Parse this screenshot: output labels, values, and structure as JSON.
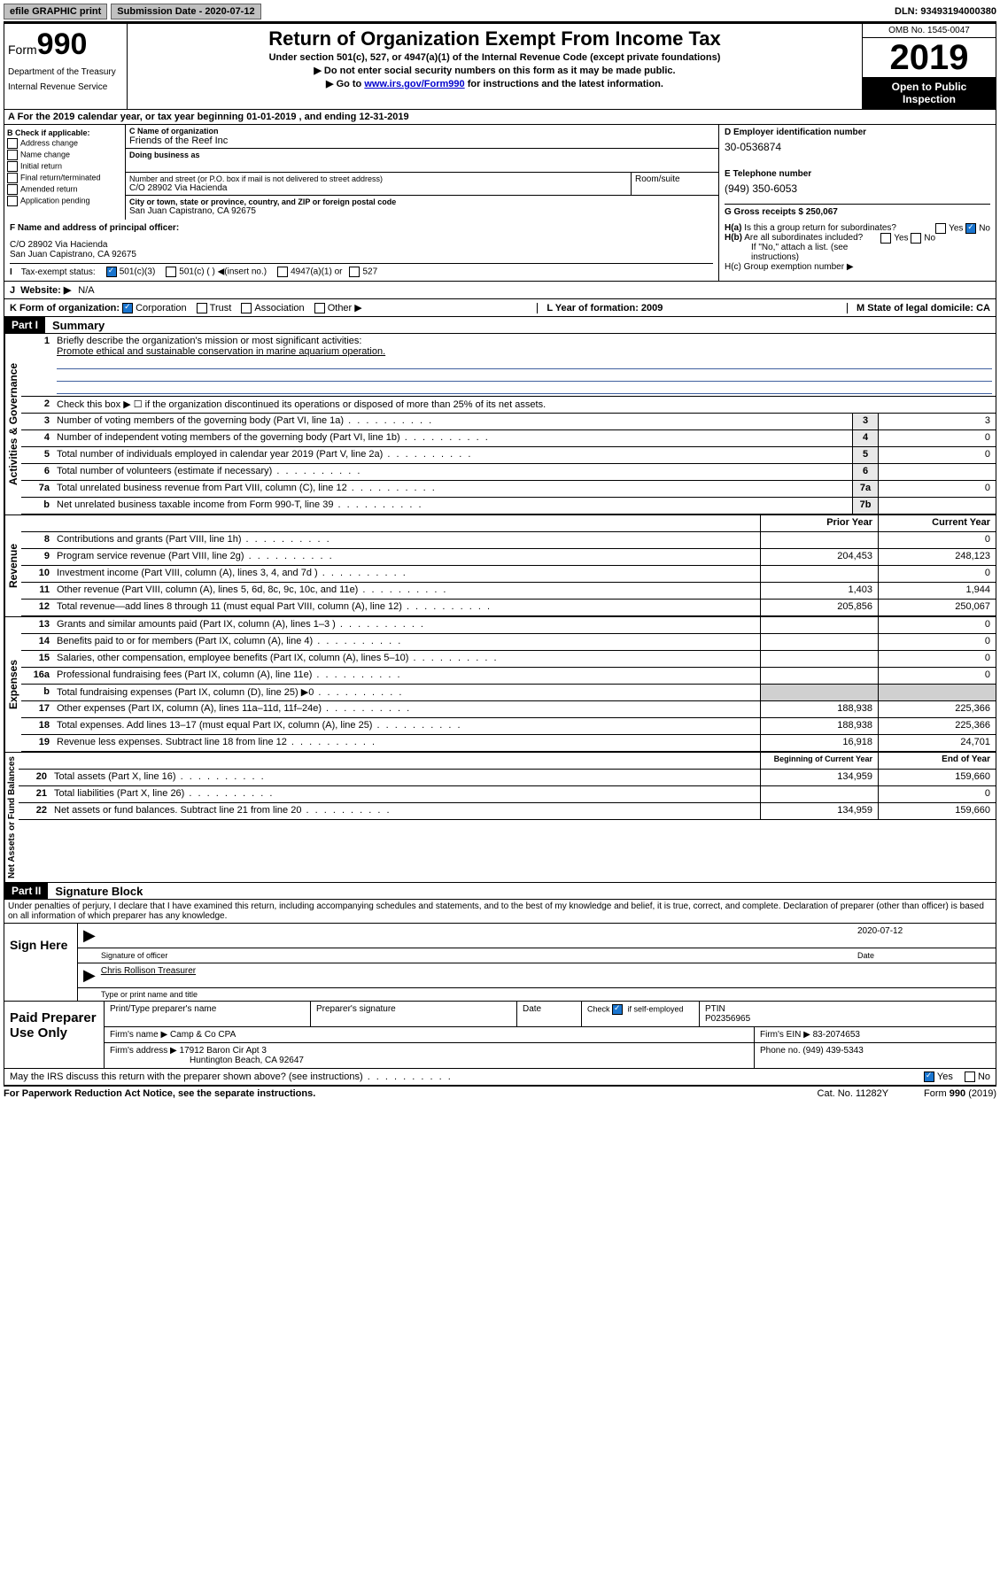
{
  "topbar": {
    "efile": "efile GRAPHIC print",
    "subdate_lbl": "Submission Date - 2020-07-12",
    "dln": "DLN: 93493194000380"
  },
  "header": {
    "form_word": "Form",
    "form_num": "990",
    "dept": "Department of the Treasury",
    "irs": "Internal Revenue Service",
    "title": "Return of Organization Exempt From Income Tax",
    "sub1": "Under section 501(c), 527, or 4947(a)(1) of the Internal Revenue Code (except private foundations)",
    "sub2": "▶ Do not enter social security numbers on this form as it may be made public.",
    "sub3_pre": "▶ Go to ",
    "sub3_link": "www.irs.gov/Form990",
    "sub3_post": " for instructions and the latest information.",
    "omb": "OMB No. 1545-0047",
    "year": "2019",
    "inspect": "Open to Public Inspection"
  },
  "rowA": "A For the 2019 calendar year, or tax year beginning 01-01-2019   , and ending 12-31-2019",
  "colB": {
    "hdr": "B Check if applicable:",
    "items": [
      "Address change",
      "Name change",
      "Initial return",
      "Final return/terminated",
      "Amended return",
      "Application pending"
    ]
  },
  "colC": {
    "name_lbl": "C Name of organization",
    "name": "Friends of the Reef Inc",
    "dba_lbl": "Doing business as",
    "addr_lbl": "Number and street (or P.O. box if mail is not delivered to street address)",
    "addr": "C/O 28902 Via Hacienda",
    "room_lbl": "Room/suite",
    "city_lbl": "City or town, state or province, country, and ZIP or foreign postal code",
    "city": "San Juan Capistrano, CA  92675"
  },
  "colD": {
    "ein_lbl": "D Employer identification number",
    "ein": "30-0536874",
    "tel_lbl": "E Telephone number",
    "tel": "(949) 350-6053",
    "gross_lbl": "G Gross receipts $ 250,067"
  },
  "rowF": {
    "lbl": "F  Name and address of principal officer:",
    "line1": "C/O 28902 Via Hacienda",
    "line2": "San Juan Capistrano, CA  92675"
  },
  "rowH": {
    "ha": "H(a)  Is this a group return for subordinates?",
    "hb": "H(b)  Are all subordinates included?",
    "hb_note": "If \"No,\" attach a list. (see instructions)",
    "hc": "H(c)  Group exemption number ▶"
  },
  "rowI": {
    "lbl": "Tax-exempt status:",
    "opts": [
      "501(c)(3)",
      "501(c) (  ) ◀(insert no.)",
      "4947(a)(1) or",
      "527"
    ]
  },
  "rowJ": {
    "lbl": "Website: ▶",
    "val": "N/A"
  },
  "rowK": {
    "lbl": "K Form of organization:",
    "opts": [
      "Corporation",
      "Trust",
      "Association",
      "Other ▶"
    ]
  },
  "rowL": {
    "lbl": "L Year of formation: 2009"
  },
  "rowM": {
    "lbl": "M State of legal domicile: CA"
  },
  "part1": {
    "hdr": "Part I",
    "title": "Summary",
    "vlabels": [
      "Activities & Governance",
      "Revenue",
      "Expenses",
      "Net Assets or Fund Balances"
    ],
    "l1_lbl": "Briefly describe the organization's mission or most significant activities:",
    "l1_val": "Promote ethical and sustainable conservation in marine aquarium operation.",
    "l2": "Check this box ▶ ☐  if the organization discontinued its operations or disposed of more than 25% of its net assets.",
    "lines_gov": [
      {
        "n": "3",
        "d": "Number of voting members of the governing body (Part VI, line 1a)",
        "b": "3",
        "v": "3"
      },
      {
        "n": "4",
        "d": "Number of independent voting members of the governing body (Part VI, line 1b)",
        "b": "4",
        "v": "0"
      },
      {
        "n": "5",
        "d": "Total number of individuals employed in calendar year 2019 (Part V, line 2a)",
        "b": "5",
        "v": "0"
      },
      {
        "n": "6",
        "d": "Total number of volunteers (estimate if necessary)",
        "b": "6",
        "v": ""
      },
      {
        "n": "7a",
        "d": "Total unrelated business revenue from Part VIII, column (C), line 12",
        "b": "7a",
        "v": "0"
      },
      {
        "n": "b",
        "d": "Net unrelated business taxable income from Form 990-T, line 39",
        "b": "7b",
        "v": ""
      }
    ],
    "col_py": "Prior Year",
    "col_cy": "Current Year",
    "lines_rev": [
      {
        "n": "8",
        "d": "Contributions and grants (Part VIII, line 1h)",
        "py": "",
        "cy": "0"
      },
      {
        "n": "9",
        "d": "Program service revenue (Part VIII, line 2g)",
        "py": "204,453",
        "cy": "248,123"
      },
      {
        "n": "10",
        "d": "Investment income (Part VIII, column (A), lines 3, 4, and 7d )",
        "py": "",
        "cy": "0"
      },
      {
        "n": "11",
        "d": "Other revenue (Part VIII, column (A), lines 5, 6d, 8c, 9c, 10c, and 11e)",
        "py": "1,403",
        "cy": "1,944"
      },
      {
        "n": "12",
        "d": "Total revenue—add lines 8 through 11 (must equal Part VIII, column (A), line 12)",
        "py": "205,856",
        "cy": "250,067"
      }
    ],
    "lines_exp": [
      {
        "n": "13",
        "d": "Grants and similar amounts paid (Part IX, column (A), lines 1–3 )",
        "py": "",
        "cy": "0"
      },
      {
        "n": "14",
        "d": "Benefits paid to or for members (Part IX, column (A), line 4)",
        "py": "",
        "cy": "0"
      },
      {
        "n": "15",
        "d": "Salaries, other compensation, employee benefits (Part IX, column (A), lines 5–10)",
        "py": "",
        "cy": "0"
      },
      {
        "n": "16a",
        "d": "Professional fundraising fees (Part IX, column (A), line 11e)",
        "py": "",
        "cy": "0"
      },
      {
        "n": "b",
        "d": "Total fundraising expenses (Part IX, column (D), line 25) ▶0",
        "py": "shade",
        "cy": "shade"
      },
      {
        "n": "17",
        "d": "Other expenses (Part IX, column (A), lines 11a–11d, 11f–24e)",
        "py": "188,938",
        "cy": "225,366"
      },
      {
        "n": "18",
        "d": "Total expenses. Add lines 13–17 (must equal Part IX, column (A), line 25)",
        "py": "188,938",
        "cy": "225,366"
      },
      {
        "n": "19",
        "d": "Revenue less expenses. Subtract line 18 from line 12",
        "py": "16,918",
        "cy": "24,701"
      }
    ],
    "col_by": "Beginning of Current Year",
    "col_ey": "End of Year",
    "lines_net": [
      {
        "n": "20",
        "d": "Total assets (Part X, line 16)",
        "py": "134,959",
        "cy": "159,660"
      },
      {
        "n": "21",
        "d": "Total liabilities (Part X, line 26)",
        "py": "",
        "cy": "0"
      },
      {
        "n": "22",
        "d": "Net assets or fund balances. Subtract line 21 from line 20",
        "py": "134,959",
        "cy": "159,660"
      }
    ]
  },
  "part2": {
    "hdr": "Part II",
    "title": "Signature Block",
    "jurat": "Under penalties of perjury, I declare that I have examined this return, including accompanying schedules and statements, and to the best of my knowledge and belief, it is true, correct, and complete. Declaration of preparer (other than officer) is based on all information of which preparer has any knowledge.",
    "sign_here": "Sign Here",
    "sig_date": "2020-07-12",
    "sig_off": "Signature of officer",
    "date_lbl": "Date",
    "name_title": "Chris Rollison Treasurer",
    "type_name": "Type or print name and title",
    "paid": "Paid Preparer Use Only",
    "prep_name_lbl": "Print/Type preparer's name",
    "prep_sig_lbl": "Preparer's signature",
    "date2": "Date",
    "check_self": "Check ☑ if self-employed",
    "ptin_lbl": "PTIN",
    "ptin": "P02356965",
    "firm_name_lbl": "Firm's name   ▶",
    "firm_name": "Camp & Co CPA",
    "firm_ein_lbl": "Firm's EIN ▶",
    "firm_ein": "83-2074653",
    "firm_addr_lbl": "Firm's address ▶",
    "firm_addr1": "17912 Baron Cir Apt 3",
    "firm_addr2": "Huntington Beach, CA  92647",
    "phone_lbl": "Phone no.",
    "phone": "(949) 439-5343",
    "discuss": "May the IRS discuss this return with the preparer shown above? (see instructions)"
  },
  "footer": {
    "l": "For Paperwork Reduction Act Notice, see the separate instructions.",
    "m": "Cat. No. 11282Y",
    "r": "Form 990 (2019)"
  },
  "yesno": {
    "yes": "Yes",
    "no": "No"
  }
}
